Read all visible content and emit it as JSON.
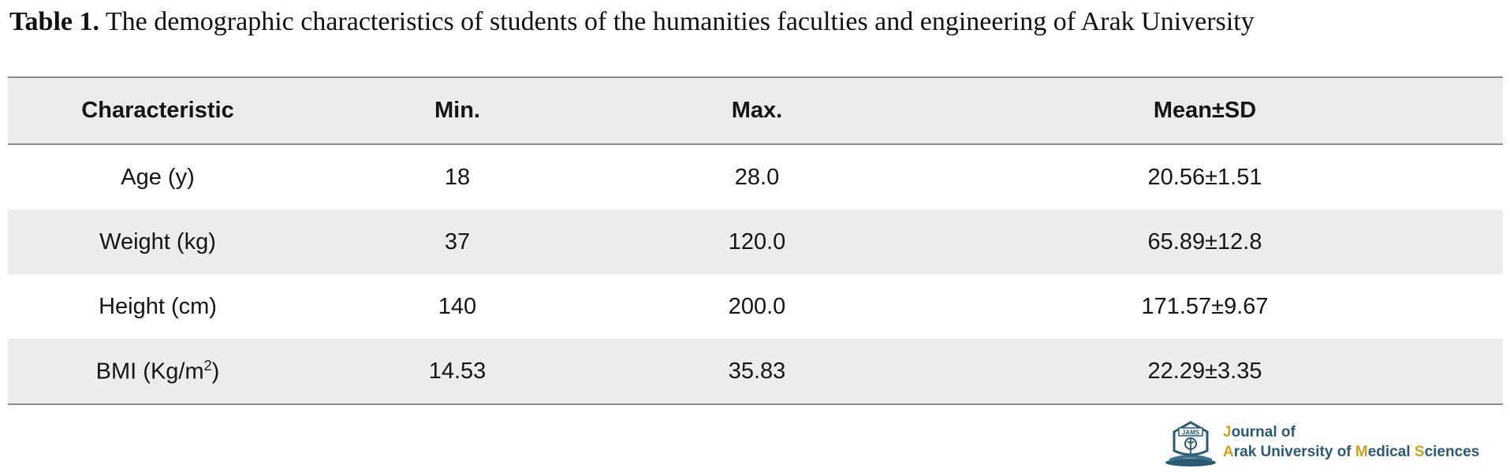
{
  "caption": {
    "label": "Table 1.",
    "text": " The demographic characteristics of students of the humanities faculties and engineering of Arak University"
  },
  "table": {
    "headers": [
      "Characteristic",
      "Min.",
      "Max.",
      "Mean±SD"
    ],
    "rows": [
      [
        "Age (y)",
        "18",
        "28.0",
        "20.56±1.51"
      ],
      [
        "Weight (kg)",
        "37",
        "120.0",
        "65.89±12.8"
      ],
      [
        "Height (cm)",
        "140",
        "200.0",
        "171.57±9.67"
      ],
      [
        "BMI (Kg/m",
        "14.53",
        "35.83",
        "22.29±3.35"
      ]
    ],
    "bmi_superscript": "2",
    "bmi_close": ")"
  },
  "logo": {
    "emblem_text": "JAMS",
    "line1_j": "J",
    "line1_rest": "ournal of",
    "line2_a": "A",
    "line2_part1": "rak University of ",
    "line2_m": "M",
    "line2_part2": "edical ",
    "line2_s": "S",
    "line2_part3": "ciences",
    "colors": {
      "primary": "#2d5a73",
      "accent": "#c9a227"
    }
  }
}
